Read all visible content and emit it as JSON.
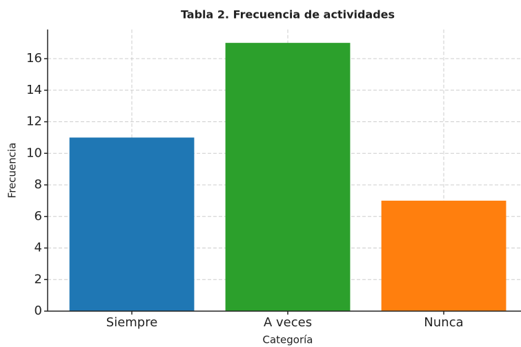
{
  "chart_data": {
    "type": "bar",
    "title": "Tabla 2. Frecuencia de actividades",
    "x_label": "Categoría",
    "y_label": "Frecuencia",
    "categories": [
      "Siempre",
      "A veces",
      "Nunca"
    ],
    "values": [
      11,
      17,
      7
    ],
    "colors": [
      "#1f77b4",
      "#2ca02c",
      "#ff7f0e"
    ],
    "ylim": [
      0,
      17.85
    ],
    "yticks": [
      0,
      2,
      4,
      6,
      8,
      10,
      12,
      14,
      16
    ],
    "grid": true
  }
}
